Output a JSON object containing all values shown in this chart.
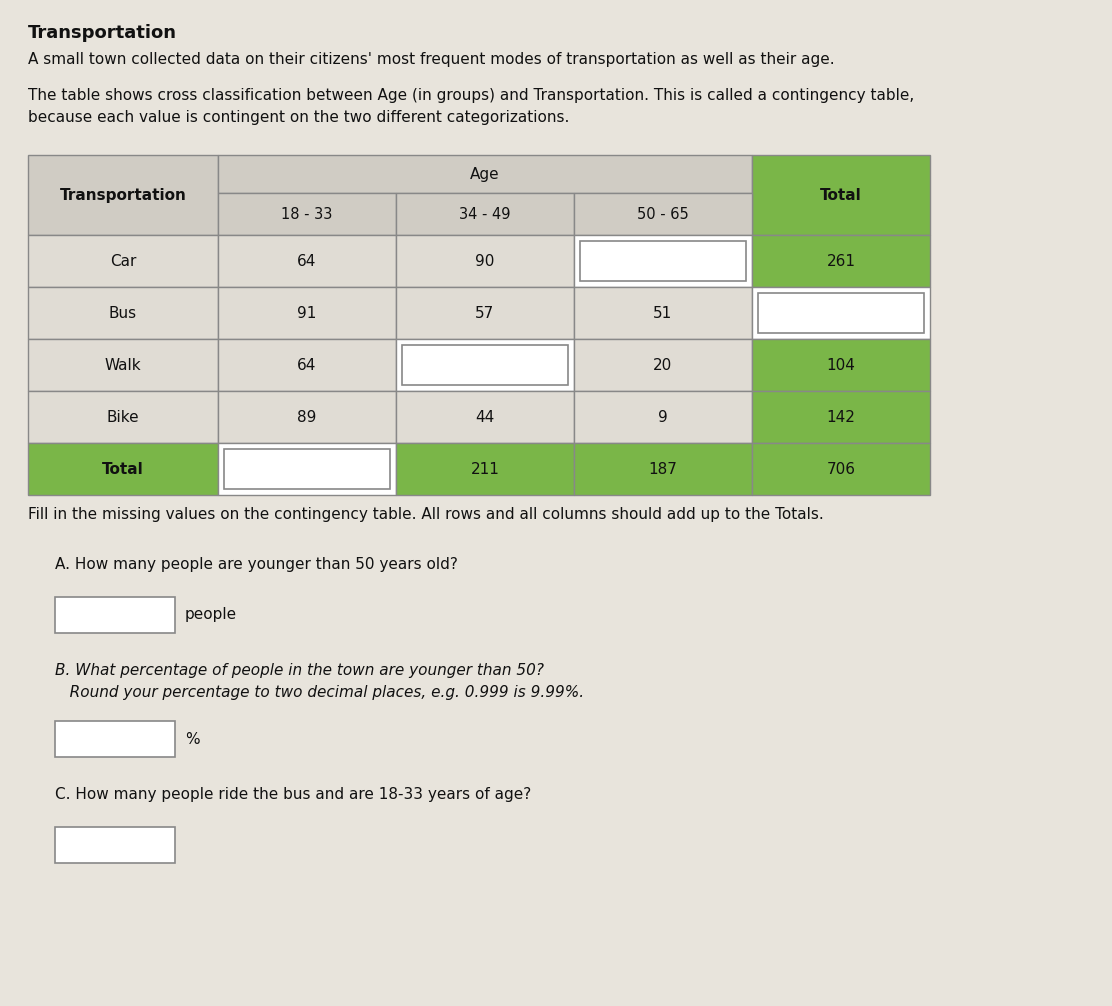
{
  "title": "Transportation",
  "intro1": "A small town collected data on their citizens' most frequent modes of transportation as well as their age.",
  "intro2_line1": "The table shows cross classification between Age (in groups) and Transportation. This is called a ​contingency table,",
  "intro2_line2": "because each value is contingent on the two different categorizations.",
  "fill_instruction": "Fill in the missing values on the contingency table. All rows and all columns should add up to the Totals.",
  "age_header": "Age",
  "total_header": "Total",
  "transport_header": "Transportation",
  "col_age_headers": [
    "18 - 33",
    "34 - 49",
    "50 - 65"
  ],
  "rows": [
    {
      "label": "Car",
      "c1": "64",
      "c2": "90",
      "c3": "",
      "ct": "261",
      "blank_c3": true,
      "blank_ct": false
    },
    {
      "label": "Bus",
      "c1": "91",
      "c2": "57",
      "c3": "51",
      "ct": "",
      "blank_c3": false,
      "blank_ct": true
    },
    {
      "label": "Walk",
      "c1": "64",
      "c2": "",
      "c3": "20",
      "ct": "104",
      "blank_c3": false,
      "blank_ct": false,
      "blank_c2": true
    },
    {
      "label": "Bike",
      "c1": "89",
      "c2": "44",
      "c3": "9",
      "ct": "142",
      "blank_c3": false,
      "blank_ct": false
    },
    {
      "label": "Total",
      "c1": "",
      "c2": "211",
      "c3": "187",
      "ct": "706",
      "blank_c1": true,
      "blank_c3": false,
      "blank_ct": false,
      "is_total": true
    }
  ],
  "question_A": "A. How many people are younger than 50 years old?",
  "question_B_line1": "B. What ​percentage​ of people in the town are younger than 50?",
  "question_B_line2": "   Round your ​percentage to two decimal places​, e.g. 0.999 is 9.99%.",
  "question_C": "C. How many people ride the bus and are 18-33 years of age?",
  "people_label": "people",
  "percent_label": "%",
  "bg_color": "#e8e4dc",
  "header_bg": "#d0ccc4",
  "data_cell_bg": "#e0dcd4",
  "total_col_bg": "#7ab648",
  "total_row_bg": "#7ab648",
  "blank_input_bg": "#ffffff",
  "grid_color": "#888888",
  "text_color": "#111111"
}
